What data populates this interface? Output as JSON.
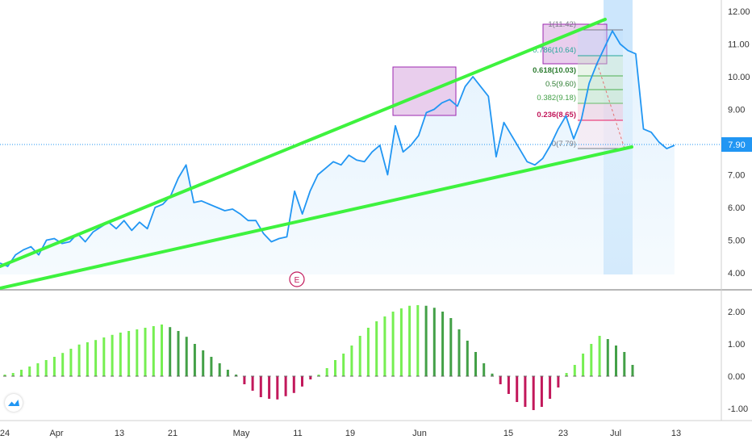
{
  "colors": {
    "price_line": "#2196f3",
    "trend_line": "#3ef23e",
    "area_fill": "#e3f2fd",
    "current_price_bg": "#2196f3",
    "earnings_marker": "#c2185b",
    "hist_pos_light": "#76ef52",
    "hist_pos_dark": "#43a047",
    "hist_neg": "#c2185b",
    "fib_box": "#e1bee7",
    "fib_box_border": "#9c27b0",
    "highlight_band": "#bbdefb"
  },
  "current_price": "7.90",
  "earnings_marker": "E",
  "fib_labels": [
    "1(11.42)",
    "0.786(10.64)",
    "0.618(10.03)",
    "0.5(9.60)",
    "0.382(9.18)",
    "0.236(8.65)",
    "0(7.79)"
  ],
  "logo_icon": "tradingview-logo-icon",
  "chart_data": [
    {
      "type": "line",
      "role": "price",
      "x_labels": [
        "24",
        "Apr",
        "13",
        "21",
        "May",
        "11",
        "19",
        "Jun",
        "15",
        "23",
        "Jul",
        "13"
      ],
      "y_ticks": [
        "12.00",
        "11.00",
        "10.00",
        "9.00",
        "8.00",
        "7.00",
        "6.00",
        "5.00",
        "4.00"
      ],
      "ylim": [
        3.5,
        12.2
      ],
      "series": [
        {
          "values": [
            4.3,
            4.2,
            4.55,
            4.7,
            4.8,
            4.55,
            5.0,
            5.05,
            4.9,
            4.95,
            5.2,
            4.95,
            5.25,
            5.4,
            5.55,
            5.35,
            5.6,
            5.3,
            5.55,
            5.35,
            6.0,
            6.1,
            6.35,
            6.9,
            7.3,
            6.15,
            6.2,
            6.1,
            6.0,
            5.9,
            5.95,
            5.8,
            5.6,
            5.6,
            5.2,
            4.95,
            5.05,
            5.1,
            6.5,
            5.8,
            6.5,
            7.0,
            7.2,
            7.4,
            7.3,
            7.6,
            7.45,
            7.4,
            7.7,
            7.9,
            7.0,
            8.5,
            7.7,
            7.9,
            8.2,
            8.9,
            9.0,
            9.2,
            9.3,
            9.1,
            9.7,
            10.0,
            9.7,
            9.4,
            7.55,
            8.6,
            8.2,
            7.8,
            7.4,
            7.3,
            7.5,
            7.9,
            8.4,
            8.8,
            8.1,
            8.7,
            9.8,
            10.4,
            10.9,
            11.4,
            11.0,
            10.8,
            10.7,
            8.4,
            8.3,
            8.0,
            7.8,
            7.9
          ]
        }
      ],
      "x_end": 0.935,
      "area": true,
      "grid": false
    },
    {
      "type": "bar",
      "role": "oscillator-histogram",
      "y_ticks": [
        "2.00",
        "1.00",
        "0.00",
        "-1.00"
      ],
      "ylim": [
        -1.2,
        2.3
      ],
      "values": [
        0.05,
        0.1,
        0.2,
        0.3,
        0.4,
        0.5,
        0.6,
        0.72,
        0.85,
        0.98,
        1.05,
        1.12,
        1.2,
        1.28,
        1.35,
        1.4,
        1.45,
        1.5,
        1.55,
        1.6,
        1.52,
        1.4,
        1.22,
        1.0,
        0.8,
        0.6,
        0.4,
        0.2,
        0.05,
        -0.25,
        -0.45,
        -0.65,
        -0.7,
        -0.72,
        -0.62,
        -0.52,
        -0.32,
        -0.1,
        0.05,
        0.25,
        0.5,
        0.7,
        0.95,
        1.25,
        1.5,
        1.7,
        1.85,
        2.0,
        2.1,
        2.18,
        2.2,
        2.18,
        2.12,
        2.0,
        1.8,
        1.45,
        1.1,
        0.75,
        0.4,
        0.08,
        -0.25,
        -0.55,
        -0.8,
        -0.95,
        -1.05,
        -0.95,
        -0.7,
        -0.35,
        0.1,
        0.35,
        0.7,
        1.0,
        1.25,
        1.15,
        0.95,
        0.75,
        0.35
      ]
    }
  ]
}
